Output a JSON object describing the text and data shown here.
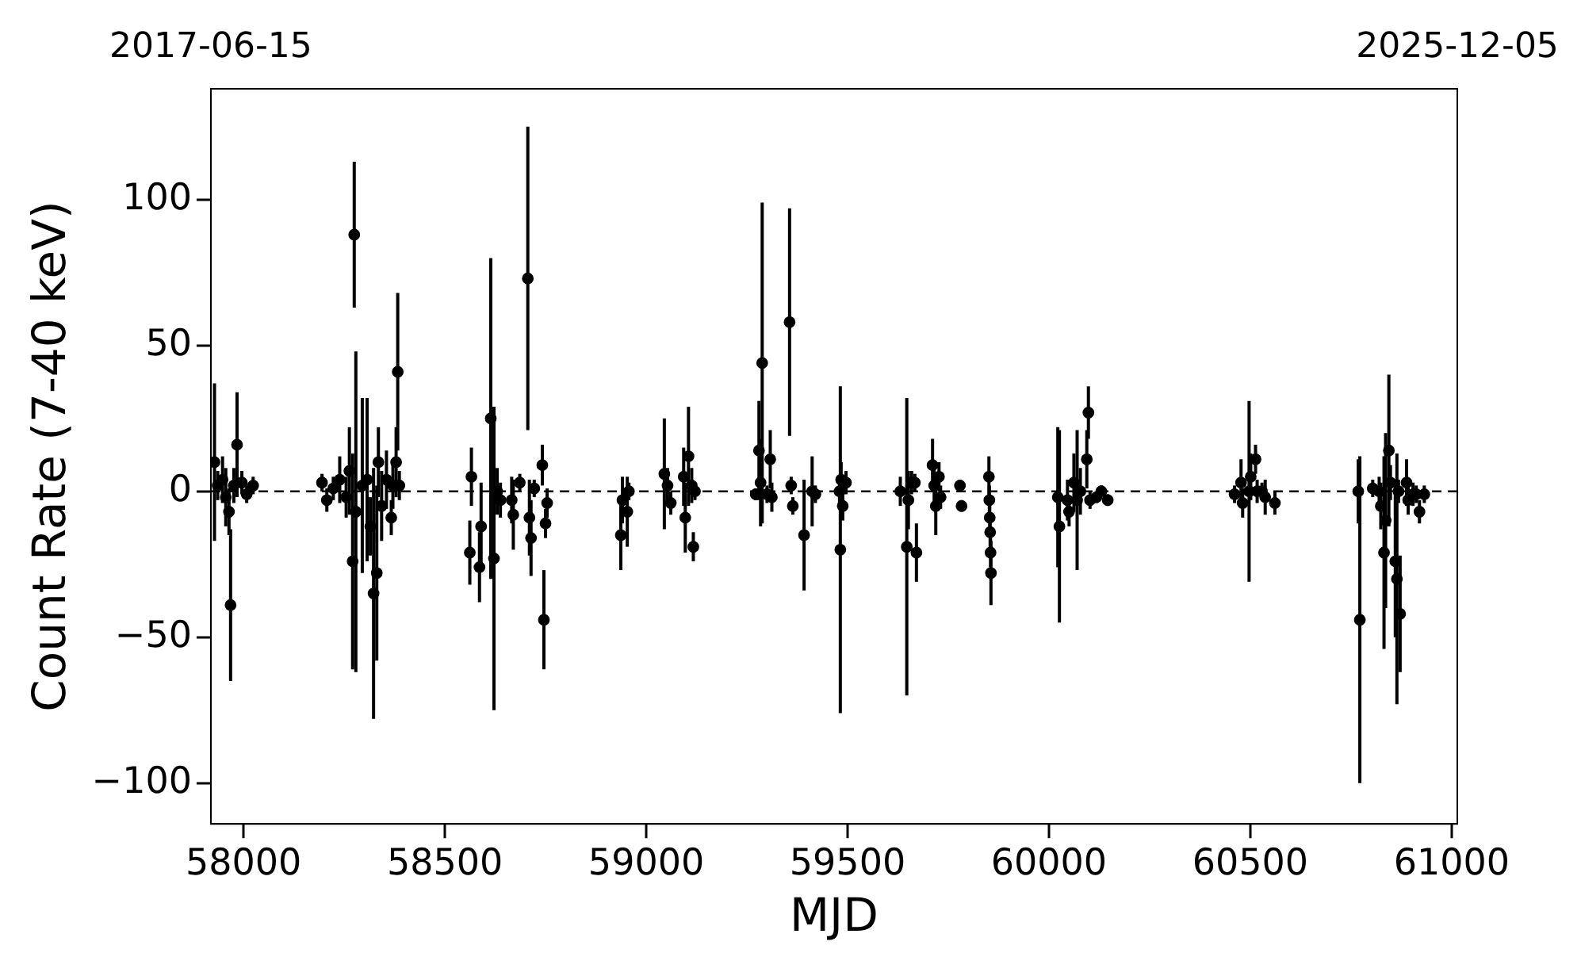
{
  "chart_data": {
    "type": "scatter",
    "xlabel": "MJD",
    "ylabel": "Count Rate (7-40 keV)",
    "xlim": [
      57919,
      61014
    ],
    "xticks": [
      58000,
      58500,
      59000,
      59500,
      60000,
      60500,
      61000
    ],
    "annotations": [
      "2017-06-15",
      "2025-12-05"
    ],
    "ylim": [
      -114,
      138
    ],
    "yticks": [
      {
        "value": -100,
        "label": "−100"
      },
      {
        "value": -50,
        "label": "−50"
      },
      0,
      50,
      100
    ],
    "marker": "circle",
    "ref_lines": [
      {
        "axis": "y",
        "value": 0,
        "color": "#000000",
        "line_style": "dashed"
      }
    ],
    "series": [
      {
        "color": "#000000",
        "x": [
          57928,
          57936,
          57948,
          57956,
          57964,
          57968,
          57976,
          57984,
          57996,
          58008,
          58024,
          58195,
          58207,
          58223,
          58239,
          58255,
          58263,
          58271,
          58275,
          58279,
          58295,
          58307,
          58315,
          58323,
          58331,
          58335,
          58343,
          58355,
          58367,
          58371,
          58379,
          58383,
          58387,
          58562,
          58566,
          58586,
          58590,
          58614,
          58622,
          58630,
          58638,
          58666,
          58670,
          58686,
          58706,
          58710,
          58714,
          58722,
          58742,
          58746,
          58750,
          58754,
          58937,
          58941,
          58953,
          58957,
          59045,
          59053,
          59061,
          59093,
          59097,
          59105,
          59113,
          59117,
          59121,
          59272,
          59280,
          59284,
          59288,
          59300,
          59308,
          59312,
          59356,
          59360,
          59364,
          59392,
          59412,
          59420,
          59480,
          59482,
          59484,
          59488,
          59496,
          59631,
          59647,
          59651,
          59659,
          59667,
          59671,
          59711,
          59715,
          59719,
          59727,
          59731,
          59779,
          59783,
          59851,
          59852,
          59853,
          59854,
          59855,
          59856,
          60022,
          60026,
          60046,
          60050,
          60062,
          60070,
          60078,
          60094,
          60098,
          60102,
          60118,
          60130,
          60146,
          60461,
          60477,
          60481,
          60497,
          60501,
          60513,
          60517,
          60529,
          60537,
          60561,
          60768,
          60772,
          60804,
          60820,
          60824,
          60832,
          60836,
          60844,
          60848,
          60860,
          60864,
          60868,
          60872,
          60888,
          60892,
          60904,
          60912,
          60920,
          60932
        ],
        "values": [
          10,
          2,
          4,
          -2,
          -7,
          -39,
          2,
          16,
          3,
          -1,
          2,
          3,
          -3,
          1,
          4,
          -2,
          7,
          -24,
          88,
          -7,
          2,
          4,
          -12,
          -35,
          -28,
          10,
          -5,
          4,
          -9,
          2,
          10,
          41,
          2,
          -21,
          5,
          -26,
          -12,
          25,
          -23,
          0,
          -3,
          -3,
          -8,
          3,
          73,
          -9,
          -16,
          1,
          9,
          -44,
          -11,
          -4,
          -15,
          -3,
          -7,
          0,
          6,
          2,
          -4,
          5,
          -9,
          12,
          2,
          -19,
          0,
          -1,
          14,
          3,
          44,
          -1,
          11,
          -2,
          58,
          2,
          -5,
          -15,
          0,
          -1,
          0,
          -20,
          4,
          -5,
          3,
          0,
          -19,
          -3,
          3,
          3,
          -21,
          9,
          2,
          -5,
          5,
          -2,
          2,
          -5,
          5,
          -3,
          -9,
          -14,
          -21,
          -28,
          -2,
          -12,
          -3,
          -7,
          3,
          -3,
          0,
          11,
          27,
          -3,
          -2,
          0,
          -3,
          -1,
          3,
          -4,
          0,
          5,
          11,
          0,
          0,
          -2,
          -4,
          0,
          -44,
          1,
          0,
          -5,
          -21,
          -10,
          14,
          3,
          -24,
          -30,
          0,
          -42,
          3,
          -3,
          -1,
          -1,
          -7,
          -1
        ],
        "errors": [
          27,
          5,
          8,
          10,
          8,
          26,
          6,
          18,
          4,
          3,
          3,
          3,
          4,
          4,
          8,
          7,
          15,
          37,
          25,
          55,
          30,
          28,
          10,
          43,
          30,
          12,
          12,
          10,
          6,
          8,
          12,
          27,
          5,
          11,
          10,
          12,
          15,
          55,
          52,
          8,
          6,
          8,
          12,
          3,
          52,
          13,
          13,
          3,
          7,
          17,
          5,
          5,
          12,
          8,
          12,
          3,
          19,
          6,
          4,
          10,
          12,
          17,
          6,
          5,
          3,
          2,
          17,
          15,
          55,
          3,
          10,
          5,
          39,
          3,
          3,
          19,
          12,
          3,
          5,
          56,
          6,
          5,
          4,
          5,
          51,
          10,
          4,
          3,
          10,
          9,
          8,
          10,
          5,
          4,
          2,
          2,
          7,
          5,
          5,
          5,
          5,
          11,
          24,
          33,
          7,
          5,
          10,
          24,
          8,
          10,
          9,
          3,
          2,
          2,
          2,
          3,
          8,
          5,
          31,
          8,
          5,
          4,
          3,
          6,
          4,
          11,
          56,
          3,
          5,
          8,
          33,
          30,
          26,
          6,
          26,
          43,
          4,
          20,
          8,
          5,
          4,
          3,
          4,
          3
        ]
      }
    ]
  }
}
